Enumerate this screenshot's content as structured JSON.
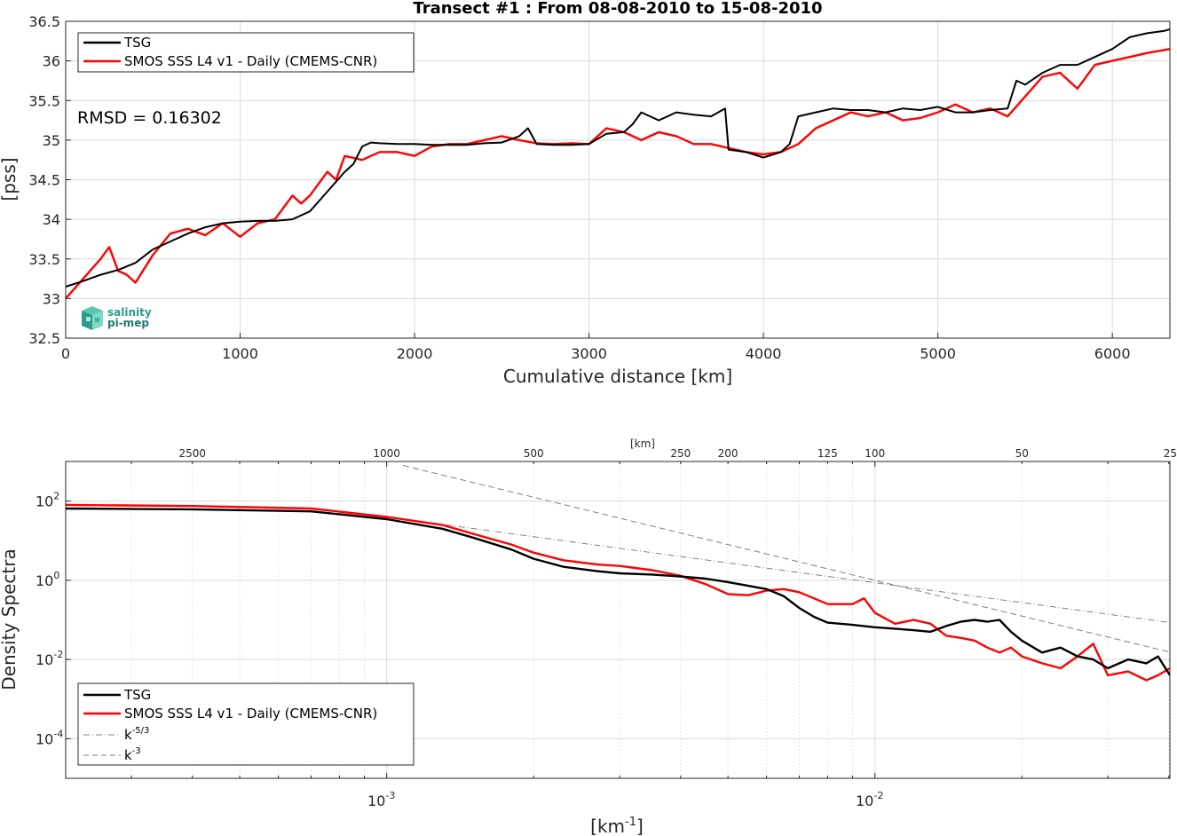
{
  "chart_data": [
    {
      "type": "line",
      "title": "Transect #1 : From 08-08-2010 to 15-08-2010",
      "xlabel": "Cumulative distance [km]",
      "ylabel": "[pss]",
      "xlim": [
        0,
        6330
      ],
      "ylim": [
        32.5,
        36.5
      ],
      "xticks": [
        "0",
        "1000",
        "2000",
        "3000",
        "4000",
        "5000",
        "6000"
      ],
      "yticks": [
        "32.5",
        "33",
        "33.5",
        "34",
        "34.5",
        "35",
        "35.5",
        "36",
        "36.5"
      ],
      "grid": true,
      "legend_position": "top-left",
      "annotation": "RMSD = 0.16302",
      "logo_text": [
        "salinity",
        "pi-mep"
      ],
      "series": [
        {
          "name": "TSG",
          "color": "#000000",
          "x": [
            0,
            100,
            200,
            300,
            400,
            500,
            600,
            700,
            800,
            900,
            1000,
            1100,
            1200,
            1300,
            1400,
            1500,
            1600,
            1650,
            1700,
            1750,
            1800,
            1900,
            2000,
            2100,
            2200,
            2300,
            2400,
            2500,
            2600,
            2650,
            2700,
            2800,
            2900,
            3000,
            3100,
            3200,
            3250,
            3300,
            3400,
            3500,
            3600,
            3700,
            3780,
            3800,
            3900,
            4000,
            4100,
            4150,
            4200,
            4300,
            4400,
            4500,
            4600,
            4700,
            4800,
            4900,
            5000,
            5100,
            5200,
            5300,
            5400,
            5450,
            5500,
            5600,
            5700,
            5800,
            5900,
            6000,
            6100,
            6200,
            6300,
            6330
          ],
          "y": [
            33.15,
            33.22,
            33.3,
            33.36,
            33.45,
            33.62,
            33.72,
            33.82,
            33.9,
            33.95,
            33.97,
            33.98,
            33.98,
            34.0,
            34.1,
            34.35,
            34.6,
            34.7,
            34.92,
            34.97,
            34.96,
            34.95,
            34.95,
            34.94,
            34.94,
            34.94,
            34.96,
            34.97,
            35.05,
            35.15,
            34.95,
            34.94,
            34.94,
            34.95,
            35.08,
            35.1,
            35.2,
            35.35,
            35.25,
            35.35,
            35.32,
            35.3,
            35.4,
            34.88,
            34.85,
            34.78,
            34.85,
            34.95,
            35.3,
            35.35,
            35.4,
            35.38,
            35.38,
            35.35,
            35.4,
            35.38,
            35.42,
            35.35,
            35.35,
            35.38,
            35.4,
            35.75,
            35.7,
            35.85,
            35.95,
            35.95,
            36.05,
            36.15,
            36.3,
            36.35,
            36.38,
            36.4
          ]
        },
        {
          "name": "SMOS SSS L4 v1 - Daily (CMEMS-CNR)",
          "color": "#ff0000",
          "x": [
            0,
            100,
            200,
            250,
            300,
            350,
            400,
            500,
            600,
            700,
            800,
            900,
            1000,
            1100,
            1200,
            1300,
            1350,
            1400,
            1500,
            1550,
            1600,
            1700,
            1800,
            1900,
            2000,
            2100,
            2200,
            2300,
            2400,
            2500,
            2600,
            2700,
            2800,
            2900,
            3000,
            3100,
            3200,
            3300,
            3400,
            3500,
            3600,
            3700,
            3800,
            3900,
            4000,
            4100,
            4200,
            4300,
            4400,
            4500,
            4600,
            4700,
            4800,
            4900,
            5000,
            5100,
            5200,
            5300,
            5400,
            5500,
            5600,
            5700,
            5800,
            5900,
            6000,
            6100,
            6200,
            6330
          ],
          "y": [
            33.0,
            33.25,
            33.5,
            33.65,
            33.35,
            33.3,
            33.2,
            33.55,
            33.82,
            33.88,
            33.8,
            33.95,
            33.78,
            33.95,
            34.0,
            34.3,
            34.2,
            34.3,
            34.6,
            34.5,
            34.8,
            34.75,
            34.85,
            34.85,
            34.8,
            34.92,
            34.95,
            34.95,
            35.0,
            35.05,
            35.0,
            34.96,
            34.95,
            34.96,
            34.95,
            35.15,
            35.1,
            35.0,
            35.1,
            35.05,
            34.95,
            34.95,
            34.9,
            34.85,
            34.82,
            34.85,
            34.95,
            35.15,
            35.25,
            35.35,
            35.3,
            35.35,
            35.25,
            35.28,
            35.35,
            35.45,
            35.35,
            35.4,
            35.3,
            35.55,
            35.8,
            35.85,
            35.65,
            35.95,
            36.0,
            36.05,
            36.1,
            36.15
          ]
        }
      ]
    },
    {
      "type": "line",
      "xlabel": "[km-1]",
      "xlabel_main": "[km",
      "xlabel_sup": "-1",
      "xlabel_end": "]",
      "ylabel": "Density Spectra",
      "x_scale": "log",
      "y_scale": "log",
      "xlim": [
        0.00022,
        0.0402
      ],
      "ylim": [
        1e-05,
        1000
      ],
      "xticks": [
        {
          "value": 0.001,
          "base": "10",
          "exp": "-3"
        },
        {
          "value": 0.01,
          "base": "10",
          "exp": "-2"
        }
      ],
      "yticks": [
        {
          "value": 0.0001,
          "base": "10",
          "exp": "-4"
        },
        {
          "value": 0.01,
          "base": "10",
          "exp": "-2"
        },
        {
          "value": 1,
          "base": "10",
          "exp": "0"
        },
        {
          "value": 100,
          "base": "10",
          "exp": "2"
        }
      ],
      "top_axis_label": "[km]",
      "top_axis_ticks": [
        "2500",
        "1000",
        "500",
        "250",
        "200",
        "125",
        "100",
        "50",
        "25"
      ],
      "grid": true,
      "legend_position": "bottom-left",
      "series": [
        {
          "name": "TSG",
          "color": "#000000",
          "x": [
            0.00022,
            0.0004,
            0.0007,
            0.001,
            0.0013,
            0.0015,
            0.0018,
            0.002,
            0.0023,
            0.0027,
            0.003,
            0.0035,
            0.004,
            0.0045,
            0.005,
            0.006,
            0.0065,
            0.007,
            0.0075,
            0.008,
            0.009,
            0.01,
            0.011,
            0.012,
            0.013,
            0.014,
            0.015,
            0.016,
            0.017,
            0.018,
            0.019,
            0.02,
            0.022,
            0.024,
            0.026,
            0.028,
            0.03,
            0.033,
            0.036,
            0.038,
            0.0402
          ],
          "y": [
            65,
            62,
            55,
            35,
            20,
            12,
            6,
            3.5,
            2.2,
            1.7,
            1.5,
            1.4,
            1.25,
            1.1,
            0.9,
            0.6,
            0.4,
            0.2,
            0.12,
            0.085,
            0.075,
            0.065,
            0.06,
            0.055,
            0.05,
            0.07,
            0.09,
            0.1,
            0.09,
            0.1,
            0.05,
            0.03,
            0.015,
            0.02,
            0.012,
            0.01,
            0.006,
            0.01,
            0.008,
            0.012,
            0.004
          ]
        },
        {
          "name": "SMOS SSS L4 v1 - Daily (CMEMS-CNR)",
          "color": "#ff0000",
          "x": [
            0.00022,
            0.0004,
            0.0007,
            0.001,
            0.0013,
            0.0015,
            0.0018,
            0.002,
            0.0023,
            0.0027,
            0.003,
            0.0035,
            0.004,
            0.0045,
            0.005,
            0.0055,
            0.006,
            0.0065,
            0.007,
            0.0075,
            0.008,
            0.009,
            0.0095,
            0.01,
            0.011,
            0.012,
            0.013,
            0.014,
            0.015,
            0.016,
            0.017,
            0.018,
            0.019,
            0.02,
            0.022,
            0.024,
            0.026,
            0.028,
            0.03,
            0.033,
            0.036,
            0.038,
            0.0402
          ],
          "y": [
            80,
            75,
            65,
            40,
            25,
            15,
            8,
            5,
            3.2,
            2.5,
            2.3,
            1.8,
            1.3,
            0.8,
            0.45,
            0.42,
            0.55,
            0.6,
            0.5,
            0.35,
            0.25,
            0.25,
            0.35,
            0.15,
            0.08,
            0.1,
            0.08,
            0.04,
            0.035,
            0.03,
            0.02,
            0.015,
            0.02,
            0.012,
            0.008,
            0.006,
            0.012,
            0.025,
            0.004,
            0.005,
            0.003,
            0.004,
            0.006
          ]
        },
        {
          "name": "k-5/3",
          "name_main": "k",
          "name_sup": "-5/3",
          "color": "#808080",
          "style": "dashdot",
          "x": [
            0.00125,
            0.0402
          ],
          "y": [
            27.5,
            0.0855
          ]
        },
        {
          "name": "k-3",
          "name_main": "k",
          "name_sup": "-3",
          "color": "#808080",
          "style": "dashed",
          "x": [
            0.00108,
            0.0402
          ],
          "y": [
            794,
            0.0154
          ]
        }
      ]
    }
  ]
}
